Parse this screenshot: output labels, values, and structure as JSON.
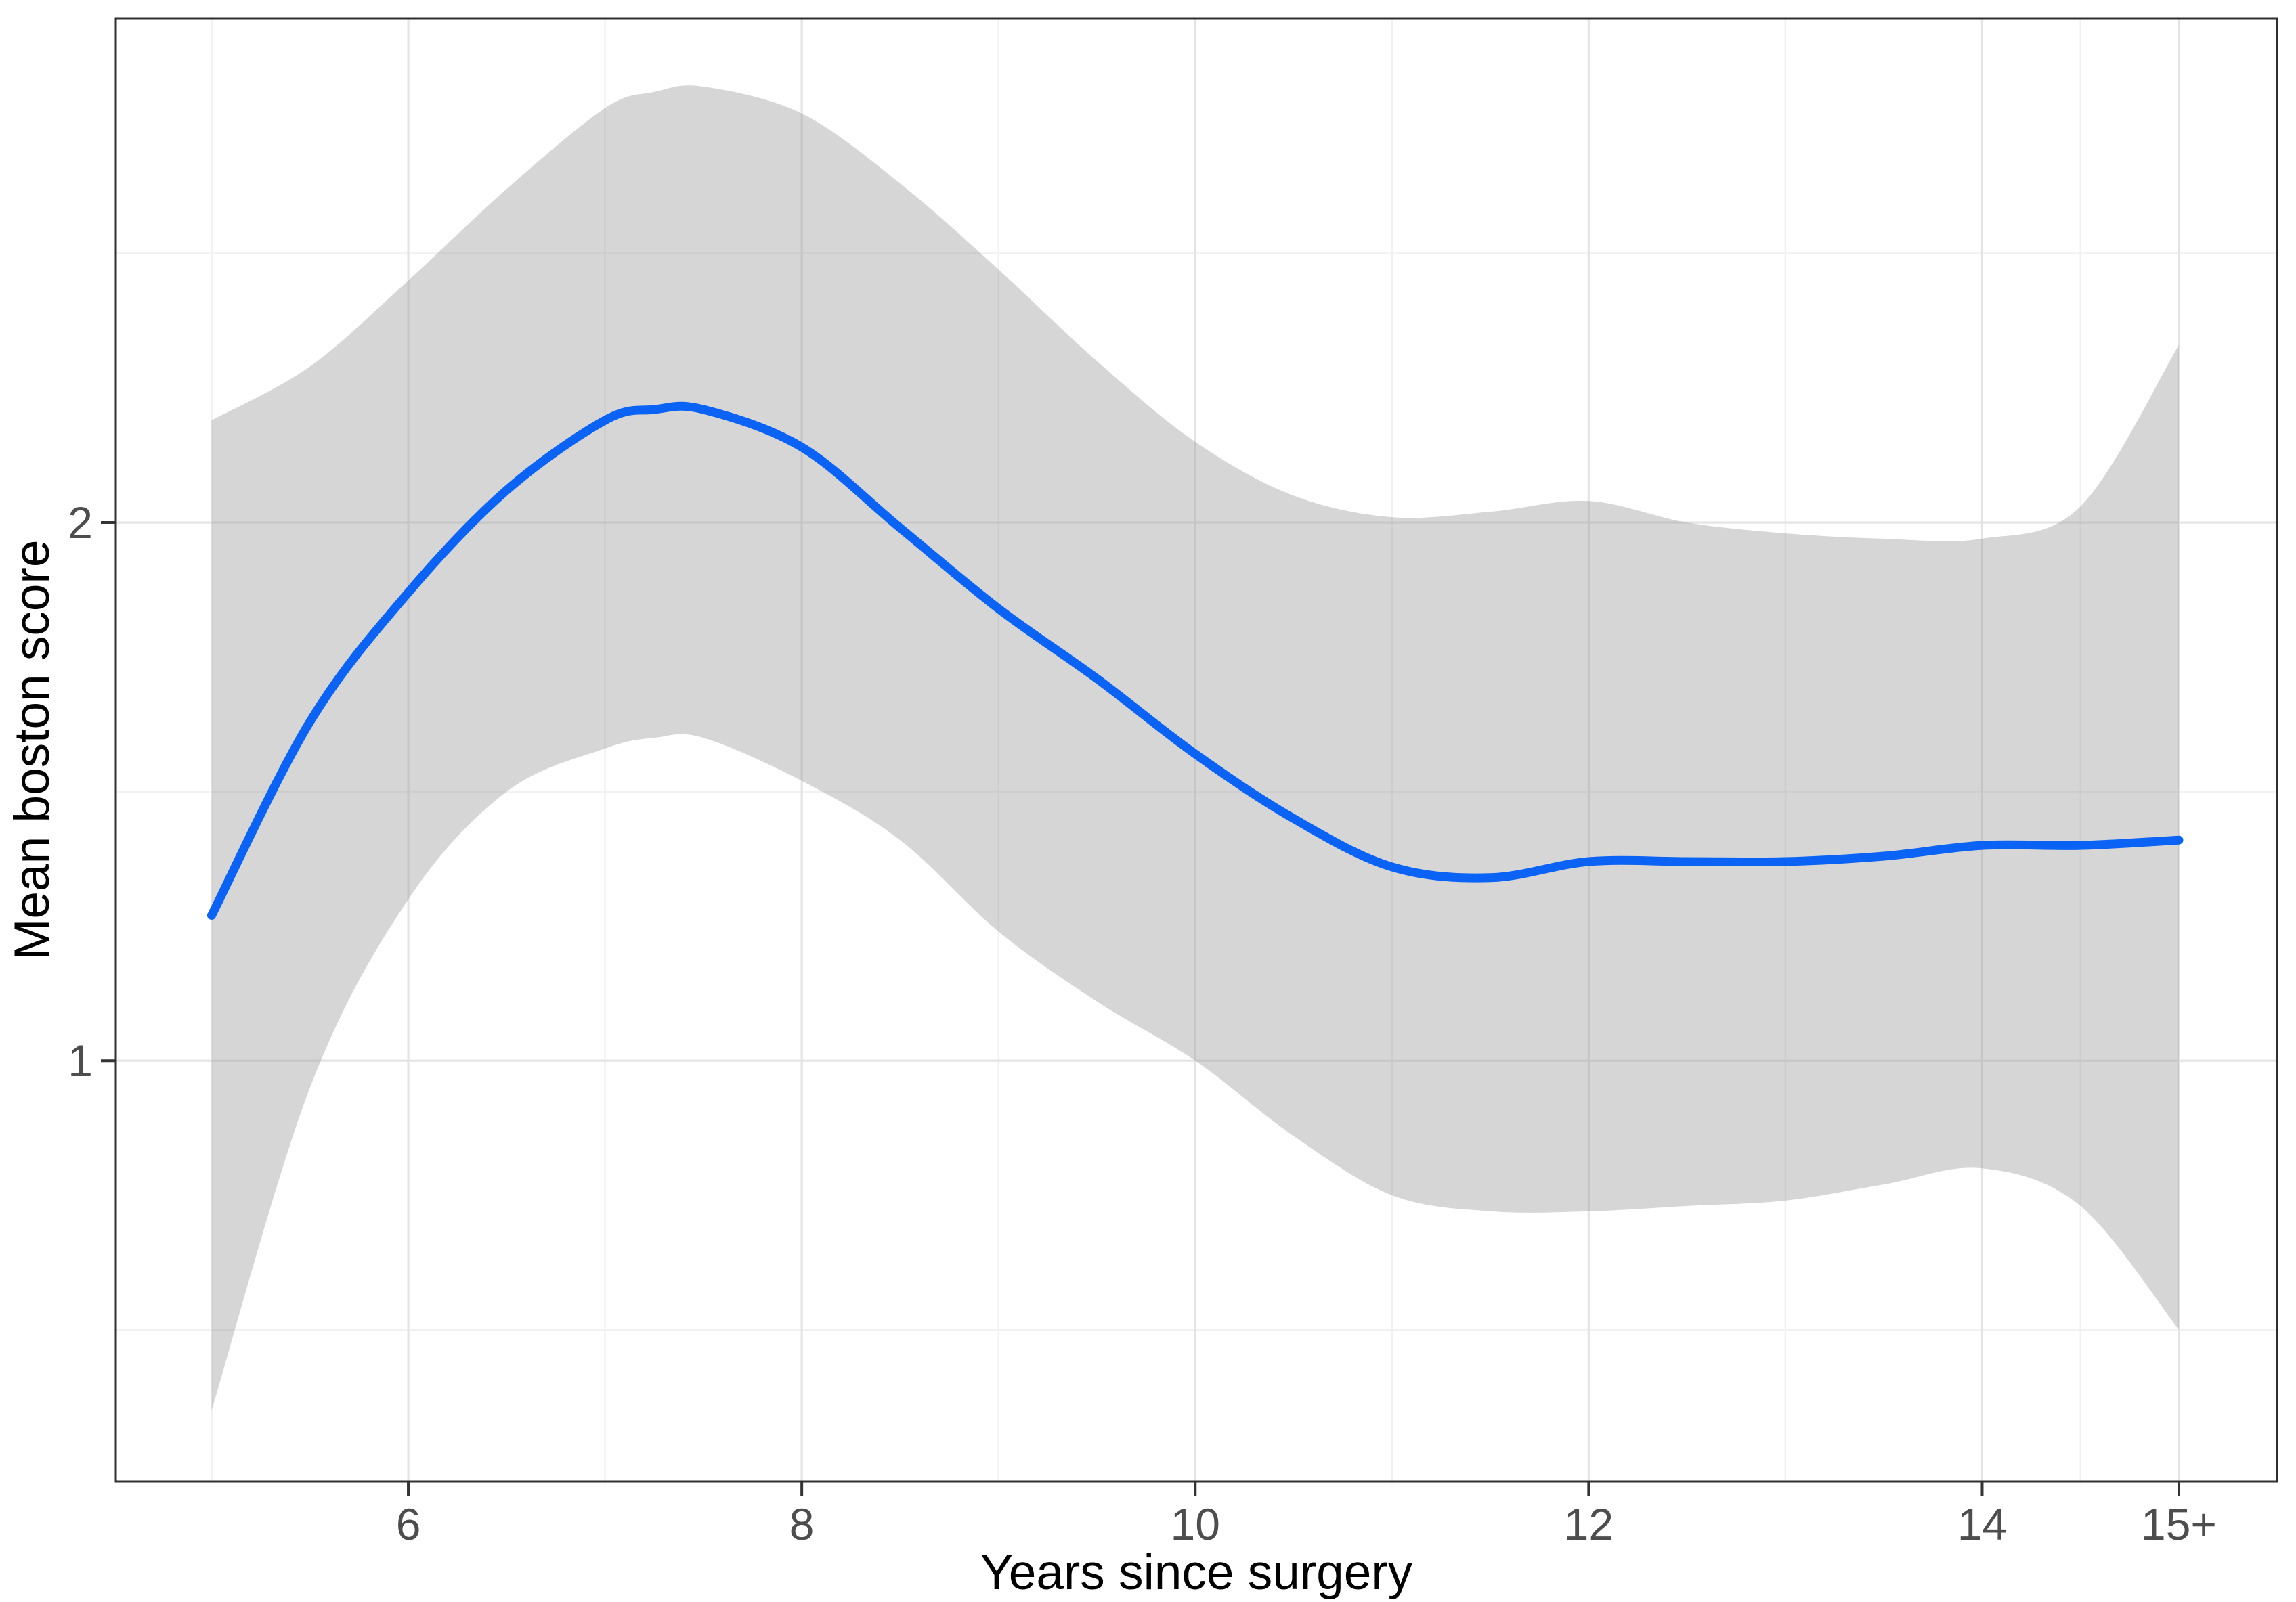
{
  "chart_data": {
    "type": "line",
    "title": "",
    "xlabel": "Years since surgery",
    "ylabel": "Mean boston score",
    "xlim": [
      4.513,
      15.499
    ],
    "ylim": [
      0.218,
      2.937
    ],
    "grid": "on",
    "legend_position": "none",
    "x_ticks": [
      {
        "v": 6,
        "label": "6"
      },
      {
        "v": 8,
        "label": "8"
      },
      {
        "v": 10,
        "label": "10"
      },
      {
        "v": 12,
        "label": "12"
      },
      {
        "v": 14,
        "label": "14"
      },
      {
        "v": 15,
        "label": "15+"
      }
    ],
    "x_minor": [
      5,
      7,
      9,
      11,
      13,
      14.5
    ],
    "y_ticks": [
      {
        "v": 1,
        "label": "1"
      },
      {
        "v": 2,
        "label": "2"
      }
    ],
    "y_minor": [
      0.5,
      1.5,
      2.5
    ],
    "x": [
      5,
      5.5,
      6,
      6.5,
      7,
      7.25,
      7.5,
      8,
      8.5,
      9,
      9.5,
      10,
      10.5,
      11,
      11.5,
      12,
      12.5,
      13,
      13.5,
      14,
      14.5,
      15
    ],
    "series": [
      {
        "name": "smoothed-mean",
        "type": "line",
        "values": [
          1.27,
          1.63,
          1.87,
          2.06,
          2.19,
          2.21,
          2.21,
          2.14,
          1.99,
          1.84,
          1.71,
          1.57,
          1.45,
          1.36,
          1.34,
          1.37,
          1.37,
          1.37,
          1.38,
          1.4,
          1.4,
          1.41
        ]
      },
      {
        "name": "confidence-band-upper",
        "type": "ribbon-upper",
        "values": [
          2.19,
          2.29,
          2.45,
          2.62,
          2.77,
          2.8,
          2.81,
          2.76,
          2.63,
          2.47,
          2.3,
          2.15,
          2.05,
          2.01,
          2.02,
          2.04,
          2.0,
          1.98,
          1.97,
          1.97,
          2.03,
          2.33
        ]
      },
      {
        "name": "confidence-band-lower",
        "type": "ribbon-lower",
        "values": [
          0.35,
          0.95,
          1.3,
          1.5,
          1.58,
          1.6,
          1.6,
          1.52,
          1.41,
          1.24,
          1.11,
          1.0,
          0.86,
          0.75,
          0.72,
          0.72,
          0.73,
          0.74,
          0.77,
          0.8,
          0.73,
          0.5
        ]
      }
    ],
    "colors": {
      "line": "#0a63f5",
      "ribbon": "#999999",
      "ribbon_opacity": 0.4,
      "grid_major": "#e4e4e4",
      "grid_minor": "#f1f1f1",
      "panel_border": "#2f2f2f",
      "tick_mark": "#333333",
      "tick_text": "#4d4d4d",
      "panel_bg": "#ffffff"
    }
  }
}
